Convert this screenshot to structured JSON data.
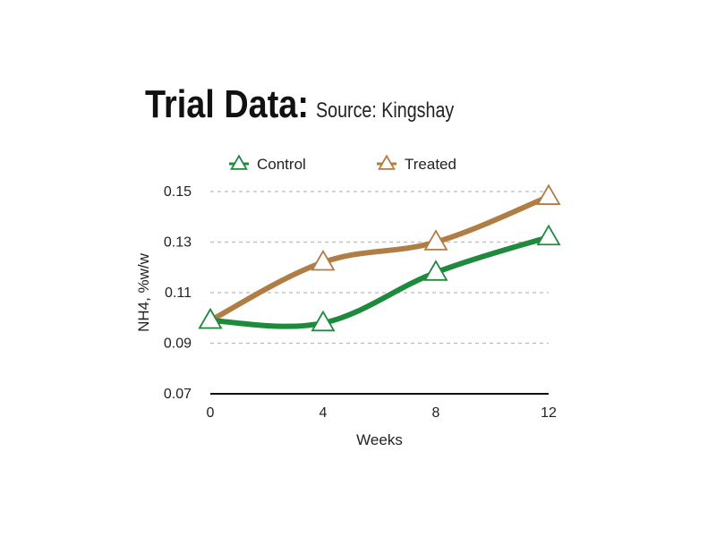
{
  "header": {
    "title": "Trial Data:",
    "subtitle": "Source: Kingshay"
  },
  "chart_data": {
    "type": "line",
    "x": [
      0,
      4,
      8,
      12
    ],
    "series": [
      {
        "name": "Control",
        "values": [
          0.099,
          0.098,
          0.118,
          0.132
        ],
        "color": "#1e8a3c"
      },
      {
        "name": "Treated",
        "values": [
          0.099,
          0.122,
          0.13,
          0.148
        ],
        "color": "#b07d45"
      }
    ],
    "xlabel": "Weeks",
    "ylabel": "NH4, %w/w",
    "xlim": [
      0,
      12
    ],
    "ylim": [
      0.07,
      0.15
    ],
    "xticks": [
      "0",
      "4",
      "8",
      "12"
    ],
    "yticks": [
      "0.07",
      "0.09",
      "0.11",
      "0.13",
      "0.15"
    ],
    "grid": true,
    "legend_position": "top"
  }
}
